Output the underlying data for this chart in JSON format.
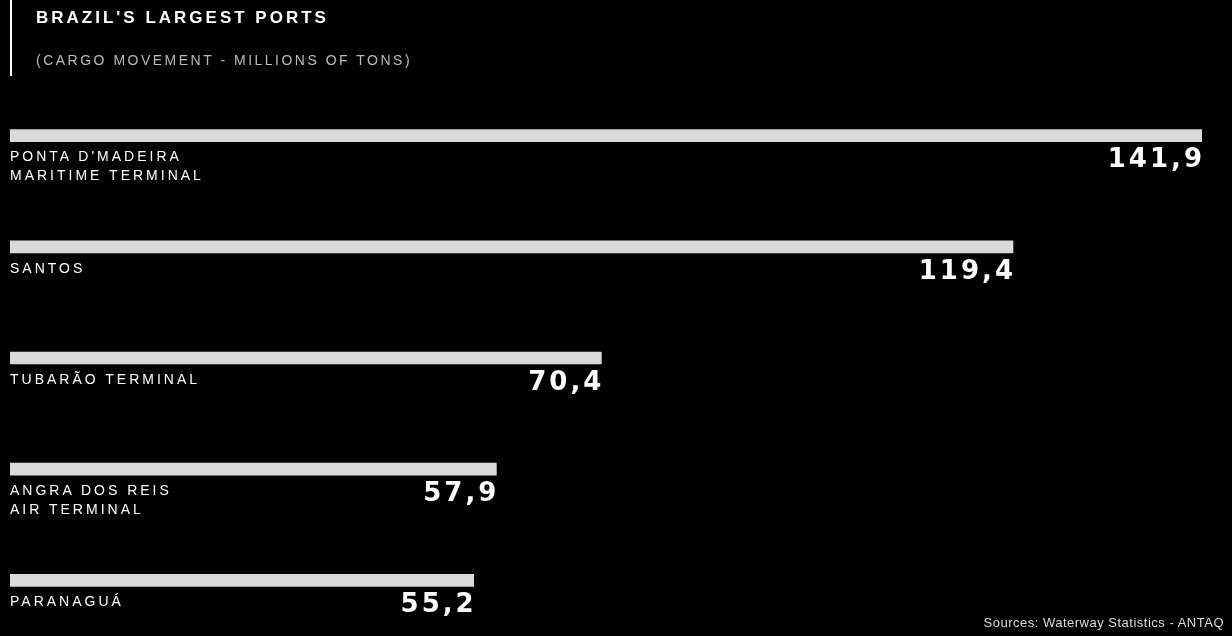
{
  "chart_data": {
    "type": "bar",
    "orientation": "horizontal",
    "title": "BRAZIL'S LARGEST PORTS",
    "subtitle": "(CARGO MOVEMENT - MILLIONS OF TONS)",
    "categories": [
      "PONTA D'MADEIRA\nMARITIME TERMINAL",
      "SANTOS",
      "TUBARÃO TERMINAL",
      "ANGRA DOS REIS\nAIR TERMINAL",
      "PARANAGUÁ"
    ],
    "values": [
      141.9,
      119.4,
      70.4,
      57.9,
      55.2
    ],
    "value_labels": [
      "141,9",
      "119,4",
      "70,4",
      "57,9",
      "55,2"
    ],
    "color": "#d9d9d9",
    "annotations": [
      "Sources: Waterway Statistics - ANTAQ"
    ]
  }
}
